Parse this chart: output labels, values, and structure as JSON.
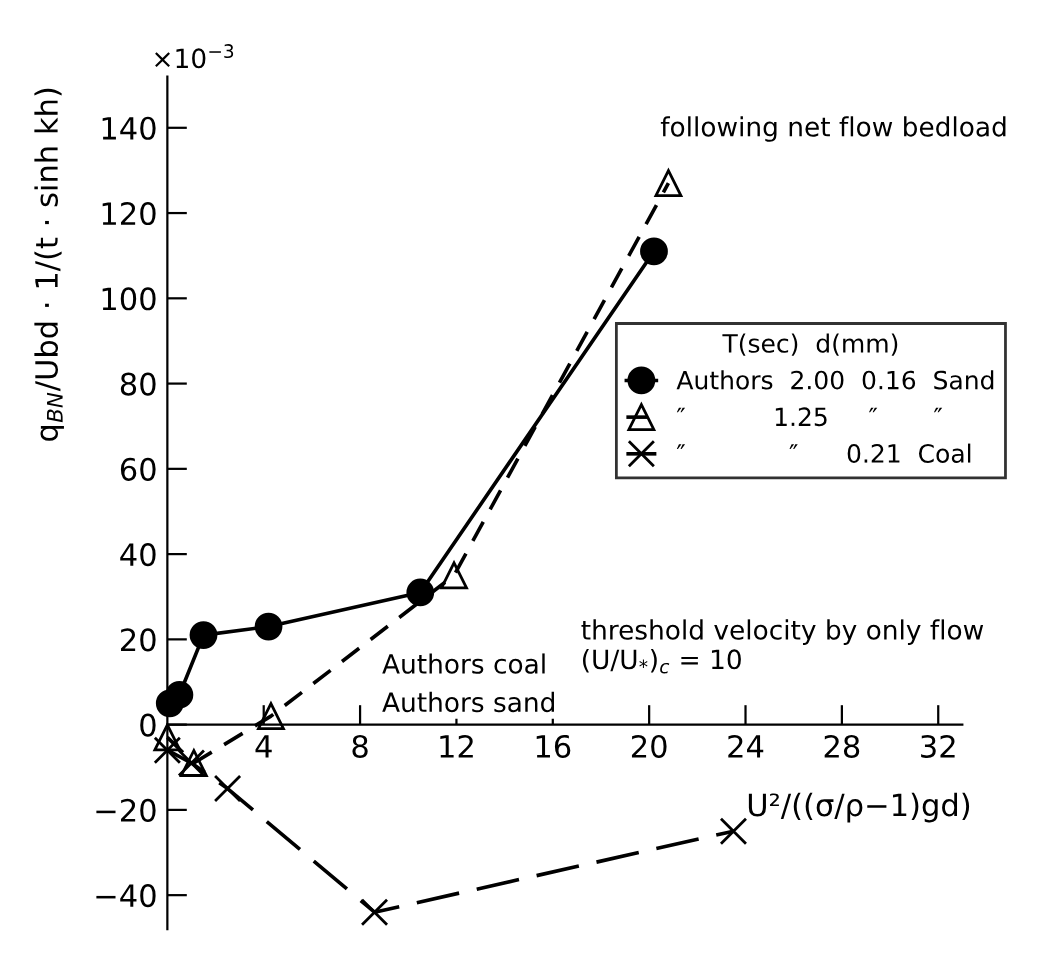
{
  "chart_data": {
    "type": "line",
    "xlabel": "U²/((σ/ρ−1)gd)",
    "ylabel": "q$_{BN}$/Ubd · 1/(t · sinh kh)",
    "legend_title": "T(sec)  d(mm)",
    "series": [
      {
        "name": "Authors  2.00  0.16  Sand",
        "color": "#000000",
        "marker": "circle",
        "line_style": "solid",
        "x": [
          0.1,
          0.5,
          1.5,
          4.2,
          10.5,
          20.2
        ],
        "values": [
          5,
          7,
          21,
          23,
          31,
          111
        ]
      },
      {
        "name": "″           1.25     ″       ″",
        "color": "#000000",
        "marker": "triangle",
        "line_style": "dashed",
        "x": [
          0,
          1.1,
          4.3,
          11.9,
          20.8
        ],
        "values": [
          -3,
          -9,
          2,
          35,
          127
        ]
      },
      {
        "name": "″             ″      0.21  Coal",
        "color": "#000000",
        "marker": "cross",
        "line_style": "dashed",
        "x": [
          0,
          1.0,
          2.5,
          8.6,
          23.5
        ],
        "values": [
          -6,
          -9,
          -15,
          -44,
          -25
        ]
      }
    ],
    "xlim": [
      0,
      33
    ],
    "ylim": [
      -48,
      152
    ],
    "xticks": [
      4,
      8,
      12,
      16,
      20,
      24,
      28,
      32
    ],
    "yticks": [
      -40,
      -20,
      0,
      20,
      40,
      60,
      80,
      100,
      120,
      140
    ],
    "grid": false,
    "legend": "right",
    "annotations": [
      "×10$^{−3}$",
      "following net flow bedload",
      "Authors coal",
      "Authors sand",
      "threshold velocity by only flow (U/U$_{*}$)$_{c}$ = 10"
    ]
  }
}
